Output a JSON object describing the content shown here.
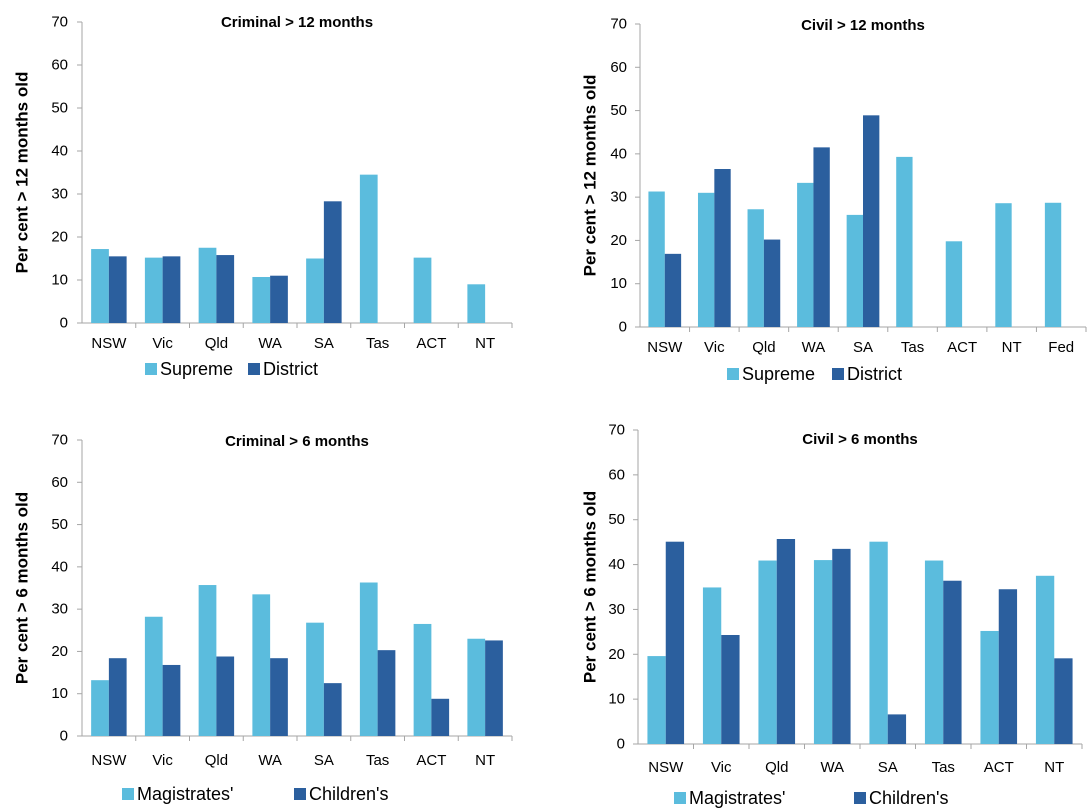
{
  "colors": {
    "light": "#5bbcdd",
    "dark": "#2b5f9e",
    "axis": "#a6a6a6"
  },
  "chart_data": [
    {
      "type": "bar",
      "title": "Criminal  > 12 months",
      "ylabel": "Per cent > 12 months old",
      "xlabel": "",
      "ylim": [
        0,
        70
      ],
      "yticks": [
        0,
        10,
        20,
        30,
        40,
        50,
        60,
        70
      ],
      "categories": [
        "NSW",
        "Vic",
        "Qld",
        "WA",
        "SA",
        "Tas",
        "ACT",
        "NT"
      ],
      "series": [
        {
          "name": "Supreme",
          "values": [
            17.2,
            15.2,
            17.5,
            10.7,
            15.0,
            34.5,
            15.2,
            9.0
          ]
        },
        {
          "name": "District",
          "values": [
            15.5,
            15.5,
            15.8,
            11.0,
            28.3,
            null,
            null,
            null
          ]
        }
      ],
      "legend": "bottom",
      "grid": false
    },
    {
      "type": "bar",
      "title": "Civil  > 12 months",
      "ylabel": "Per cent > 12 months old",
      "xlabel": "",
      "ylim": [
        0,
        70
      ],
      "yticks": [
        0,
        10,
        20,
        30,
        40,
        50,
        60,
        70
      ],
      "categories": [
        "NSW",
        "Vic",
        "Qld",
        "WA",
        "SA",
        "Tas",
        "ACT",
        "NT",
        "Fed"
      ],
      "series": [
        {
          "name": "Supreme",
          "values": [
            31.3,
            31.0,
            27.2,
            33.3,
            25.9,
            39.3,
            19.8,
            28.6,
            28.7
          ]
        },
        {
          "name": "District",
          "values": [
            16.9,
            36.5,
            20.2,
            41.5,
            48.9,
            null,
            null,
            null,
            null
          ]
        }
      ],
      "legend": "bottom",
      "grid": false
    },
    {
      "type": "bar",
      "title": "Criminal  > 6 months",
      "ylabel": "Per cent > 6 months old",
      "xlabel": "",
      "ylim": [
        0,
        70
      ],
      "yticks": [
        0,
        10,
        20,
        30,
        40,
        50,
        60,
        70
      ],
      "categories": [
        "NSW",
        "Vic",
        "Qld",
        "WA",
        "SA",
        "Tas",
        "ACT",
        "NT"
      ],
      "series": [
        {
          "name": "Magistrates'",
          "values": [
            13.2,
            28.2,
            35.7,
            33.5,
            26.8,
            36.3,
            26.5,
            23.0
          ]
        },
        {
          "name": "Children's",
          "values": [
            18.4,
            16.8,
            18.8,
            18.4,
            12.5,
            20.3,
            8.8,
            22.6
          ]
        }
      ],
      "legend": "bottom",
      "grid": false
    },
    {
      "type": "bar",
      "title": "Civil  > 6 months",
      "ylabel": "Per cent > 6 months old",
      "xlabel": "",
      "ylim": [
        0,
        70
      ],
      "yticks": [
        0,
        10,
        20,
        30,
        40,
        50,
        60,
        70
      ],
      "categories": [
        "NSW",
        "Vic",
        "Qld",
        "WA",
        "SA",
        "Tas",
        "ACT",
        "NT"
      ],
      "series": [
        {
          "name": "Magistrates'",
          "values": [
            19.6,
            34.9,
            40.9,
            41.0,
            45.1,
            40.9,
            25.2,
            37.5
          ]
        },
        {
          "name": "Children's",
          "values": [
            45.1,
            24.3,
            45.7,
            43.5,
            6.6,
            36.4,
            34.5,
            19.1
          ]
        }
      ],
      "legend": "bottom",
      "grid": false
    }
  ]
}
